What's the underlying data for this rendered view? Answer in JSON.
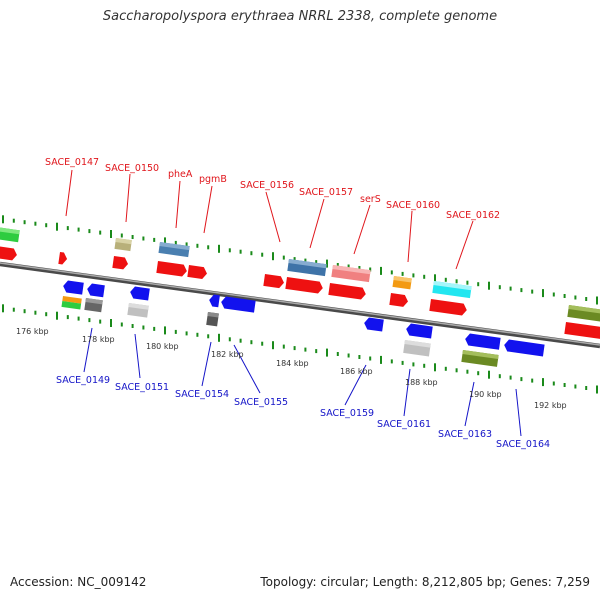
{
  "title": "Saccharopolyspora erythraea NRRL 2338, complete genome",
  "footer": {
    "accession": "Accession: NC_009142",
    "topology": "Topology: circular; Length: 8,212,805 bp; Genes: 7,259"
  },
  "colors": {
    "forward_label": "#e0161c",
    "reverse_label": "#1515c8",
    "tick": "#1a8a1a",
    "backbone": "#777777"
  },
  "forward_labels": [
    {
      "text": "SACE_0147"
    },
    {
      "text": "SACE_0150"
    },
    {
      "text": "pheA"
    },
    {
      "text": "pgmB"
    },
    {
      "text": "SACE_0156"
    },
    {
      "text": "SACE_0157"
    },
    {
      "text": "serS"
    },
    {
      "text": "SACE_0160"
    },
    {
      "text": "SACE_0162"
    }
  ],
  "reverse_labels": [
    {
      "text": "SACE_0149"
    },
    {
      "text": "SACE_0151"
    },
    {
      "text": "SACE_0154"
    },
    {
      "text": "SACE_0155"
    },
    {
      "text": "SACE_0159"
    },
    {
      "text": "SACE_0161"
    },
    {
      "text": "SACE_0163"
    },
    {
      "text": "SACE_0164"
    }
  ],
  "kbp_labels": [
    "176 kbp",
    "178 kbp",
    "180 kbp",
    "182 kbp",
    "184 kbp",
    "186 kbp",
    "188 kbp",
    "190 kbp",
    "192 kbp"
  ]
}
